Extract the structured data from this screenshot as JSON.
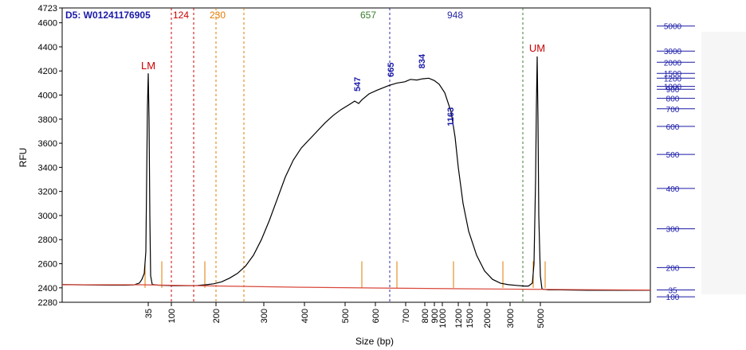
{
  "chart_data": {
    "type": "line",
    "title": "D5: W01241176905",
    "xlabel": "Size (bp)",
    "ylabel": "RFU",
    "ylim": [
      2280,
      4723
    ],
    "y_ticks": [
      2280,
      2400,
      2600,
      2800,
      3000,
      3200,
      3400,
      3600,
      3800,
      4000,
      4200,
      4400,
      4600,
      4723
    ],
    "x_ticks": [
      {
        "label": "35",
        "pos": 108
      },
      {
        "label": "100",
        "pos": 137
      },
      {
        "label": "200",
        "pos": 193
      },
      {
        "label": "300",
        "pos": 253
      },
      {
        "label": "400",
        "pos": 304
      },
      {
        "label": "500",
        "pos": 355
      },
      {
        "label": "600",
        "pos": 393
      },
      {
        "label": "700",
        "pos": 431
      },
      {
        "label": "800",
        "pos": 455
      },
      {
        "label": "900",
        "pos": 467
      },
      {
        "label": "1000",
        "pos": 477
      },
      {
        "label": "1200",
        "pos": 497
      },
      {
        "label": "1500",
        "pos": 511
      },
      {
        "label": "2000",
        "pos": 533
      },
      {
        "label": "3000",
        "pos": 562
      },
      {
        "label": "5000",
        "pos": 600
      }
    ],
    "right_axis_ticks": [
      {
        "label": "5000",
        "rfu": 4573
      },
      {
        "label": "3000",
        "rfu": 4365
      },
      {
        "label": "2000",
        "rfu": 4272
      },
      {
        "label": "1500",
        "rfu": 4180
      },
      {
        "label": "1200",
        "rfu": 4140
      },
      {
        "label": "1000",
        "rfu": 4072
      },
      {
        "label": "900",
        "rfu": 4048
      },
      {
        "label": "800",
        "rfu": 3973
      },
      {
        "label": "700",
        "rfu": 3886
      },
      {
        "label": "600",
        "rfu": 3740
      },
      {
        "label": "500",
        "rfu": 3507
      },
      {
        "label": "400",
        "rfu": 3225
      },
      {
        "label": "300",
        "rfu": 2890
      },
      {
        "label": "200",
        "rfu": 2568
      },
      {
        "label": "100",
        "rfu": 2325
      },
      {
        "label": "35",
        "rfu": 2382
      }
    ],
    "markers": [
      {
        "label": "LM",
        "x": 108,
        "y": 4215,
        "color": "#cc0000"
      },
      {
        "label": "UM",
        "x": 596,
        "y": 4360,
        "color": "#cc0000"
      }
    ],
    "vlines": [
      {
        "x": 137,
        "color": "#cc0000",
        "label": "124",
        "label_x": 149
      },
      {
        "x": 165,
        "color": "#cc0000",
        "label": "",
        "label_x": 0
      },
      {
        "x": 193,
        "color": "#3a7d2c",
        "label": "",
        "label_x": 0
      },
      {
        "x": 193,
        "color": "#e07b00",
        "label": "230",
        "label_x": 195
      },
      {
        "x": 228,
        "color": "#e07b00",
        "label": "",
        "label_x": 0
      },
      {
        "x": 411,
        "color": "#2a2aa8",
        "label": "",
        "label_x": 0
      },
      {
        "x": 578,
        "color": "#3a7d2c",
        "label": "",
        "label_x": 0
      }
    ],
    "top_labels": [
      {
        "label": "657",
        "x": 384,
        "color": "#3a7d2c"
      },
      {
        "label": "948",
        "x": 493,
        "color": "#2a2aa8"
      }
    ],
    "peak_labels": [
      {
        "label": "547",
        "x": 374,
        "y": 4090
      },
      {
        "label": "665",
        "x": 416,
        "y": 4210
      },
      {
        "label": "834",
        "x": 455,
        "y": 4280
      },
      {
        "label": "1163",
        "x": 491,
        "y": 3820
      }
    ],
    "ladder_ticks": [
      104,
      125,
      179,
      376,
      420,
      491,
      553,
      591,
      606
    ],
    "series": [
      {
        "name": "",
        "color": "#000000",
        "points": [
          [
            0,
            2427
          ],
          [
            20,
            2425
          ],
          [
            40,
            2423
          ],
          [
            60,
            2422
          ],
          [
            80,
            2422
          ],
          [
            90,
            2424
          ],
          [
            97,
            2440
          ],
          [
            100,
            2470
          ],
          [
            103,
            2520
          ],
          [
            105,
            2700
          ],
          [
            106,
            3300
          ],
          [
            107,
            3900
          ],
          [
            108,
            4180
          ],
          [
            109,
            3800
          ],
          [
            110,
            3000
          ],
          [
            111,
            2500
          ],
          [
            113,
            2428
          ],
          [
            120,
            2422
          ],
          [
            130,
            2420
          ],
          [
            140,
            2418
          ],
          [
            150,
            2418
          ],
          [
            160,
            2418
          ],
          [
            170,
            2420
          ],
          [
            180,
            2425
          ],
          [
            190,
            2433
          ],
          [
            200,
            2450
          ],
          [
            210,
            2480
          ],
          [
            220,
            2520
          ],
          [
            230,
            2580
          ],
          [
            240,
            2670
          ],
          [
            250,
            2800
          ],
          [
            260,
            2960
          ],
          [
            270,
            3140
          ],
          [
            280,
            3320
          ],
          [
            290,
            3460
          ],
          [
            300,
            3560
          ],
          [
            310,
            3630
          ],
          [
            320,
            3700
          ],
          [
            330,
            3770
          ],
          [
            340,
            3830
          ],
          [
            350,
            3880
          ],
          [
            360,
            3920
          ],
          [
            367,
            3950
          ],
          [
            372,
            3930
          ],
          [
            376,
            3960
          ],
          [
            385,
            4010
          ],
          [
            395,
            4040
          ],
          [
            410,
            4080
          ],
          [
            420,
            4100
          ],
          [
            430,
            4110
          ],
          [
            437,
            4130
          ],
          [
            445,
            4125
          ],
          [
            452,
            4135
          ],
          [
            460,
            4140
          ],
          [
            467,
            4120
          ],
          [
            473,
            4090
          ],
          [
            480,
            4020
          ],
          [
            488,
            3860
          ],
          [
            493,
            3650
          ],
          [
            497,
            3400
          ],
          [
            503,
            3100
          ],
          [
            510,
            2870
          ],
          [
            520,
            2670
          ],
          [
            530,
            2540
          ],
          [
            540,
            2470
          ],
          [
            550,
            2438
          ],
          [
            560,
            2426
          ],
          [
            570,
            2420
          ],
          [
            580,
            2415
          ],
          [
            585,
            2415
          ],
          [
            590,
            2440
          ],
          [
            592,
            2600
          ],
          [
            594,
            3300
          ],
          [
            595,
            3900
          ],
          [
            596,
            4320
          ],
          [
            597,
            3800
          ],
          [
            598,
            3000
          ],
          [
            600,
            2500
          ],
          [
            602,
            2390
          ],
          [
            610,
            2383
          ],
          [
            625,
            2383
          ],
          [
            640,
            2382
          ],
          [
            660,
            2380
          ],
          [
            690,
            2380
          ],
          [
            738,
            2380
          ]
        ]
      },
      {
        "name": "",
        "color": "#d9483b",
        "points": [
          [
            0,
            2425
          ],
          [
            100,
            2425
          ],
          [
            200,
            2415
          ],
          [
            300,
            2405
          ],
          [
            400,
            2398
          ],
          [
            500,
            2392
          ],
          [
            580,
            2388
          ],
          [
            660,
            2384
          ],
          [
            738,
            2382
          ]
        ]
      }
    ]
  }
}
